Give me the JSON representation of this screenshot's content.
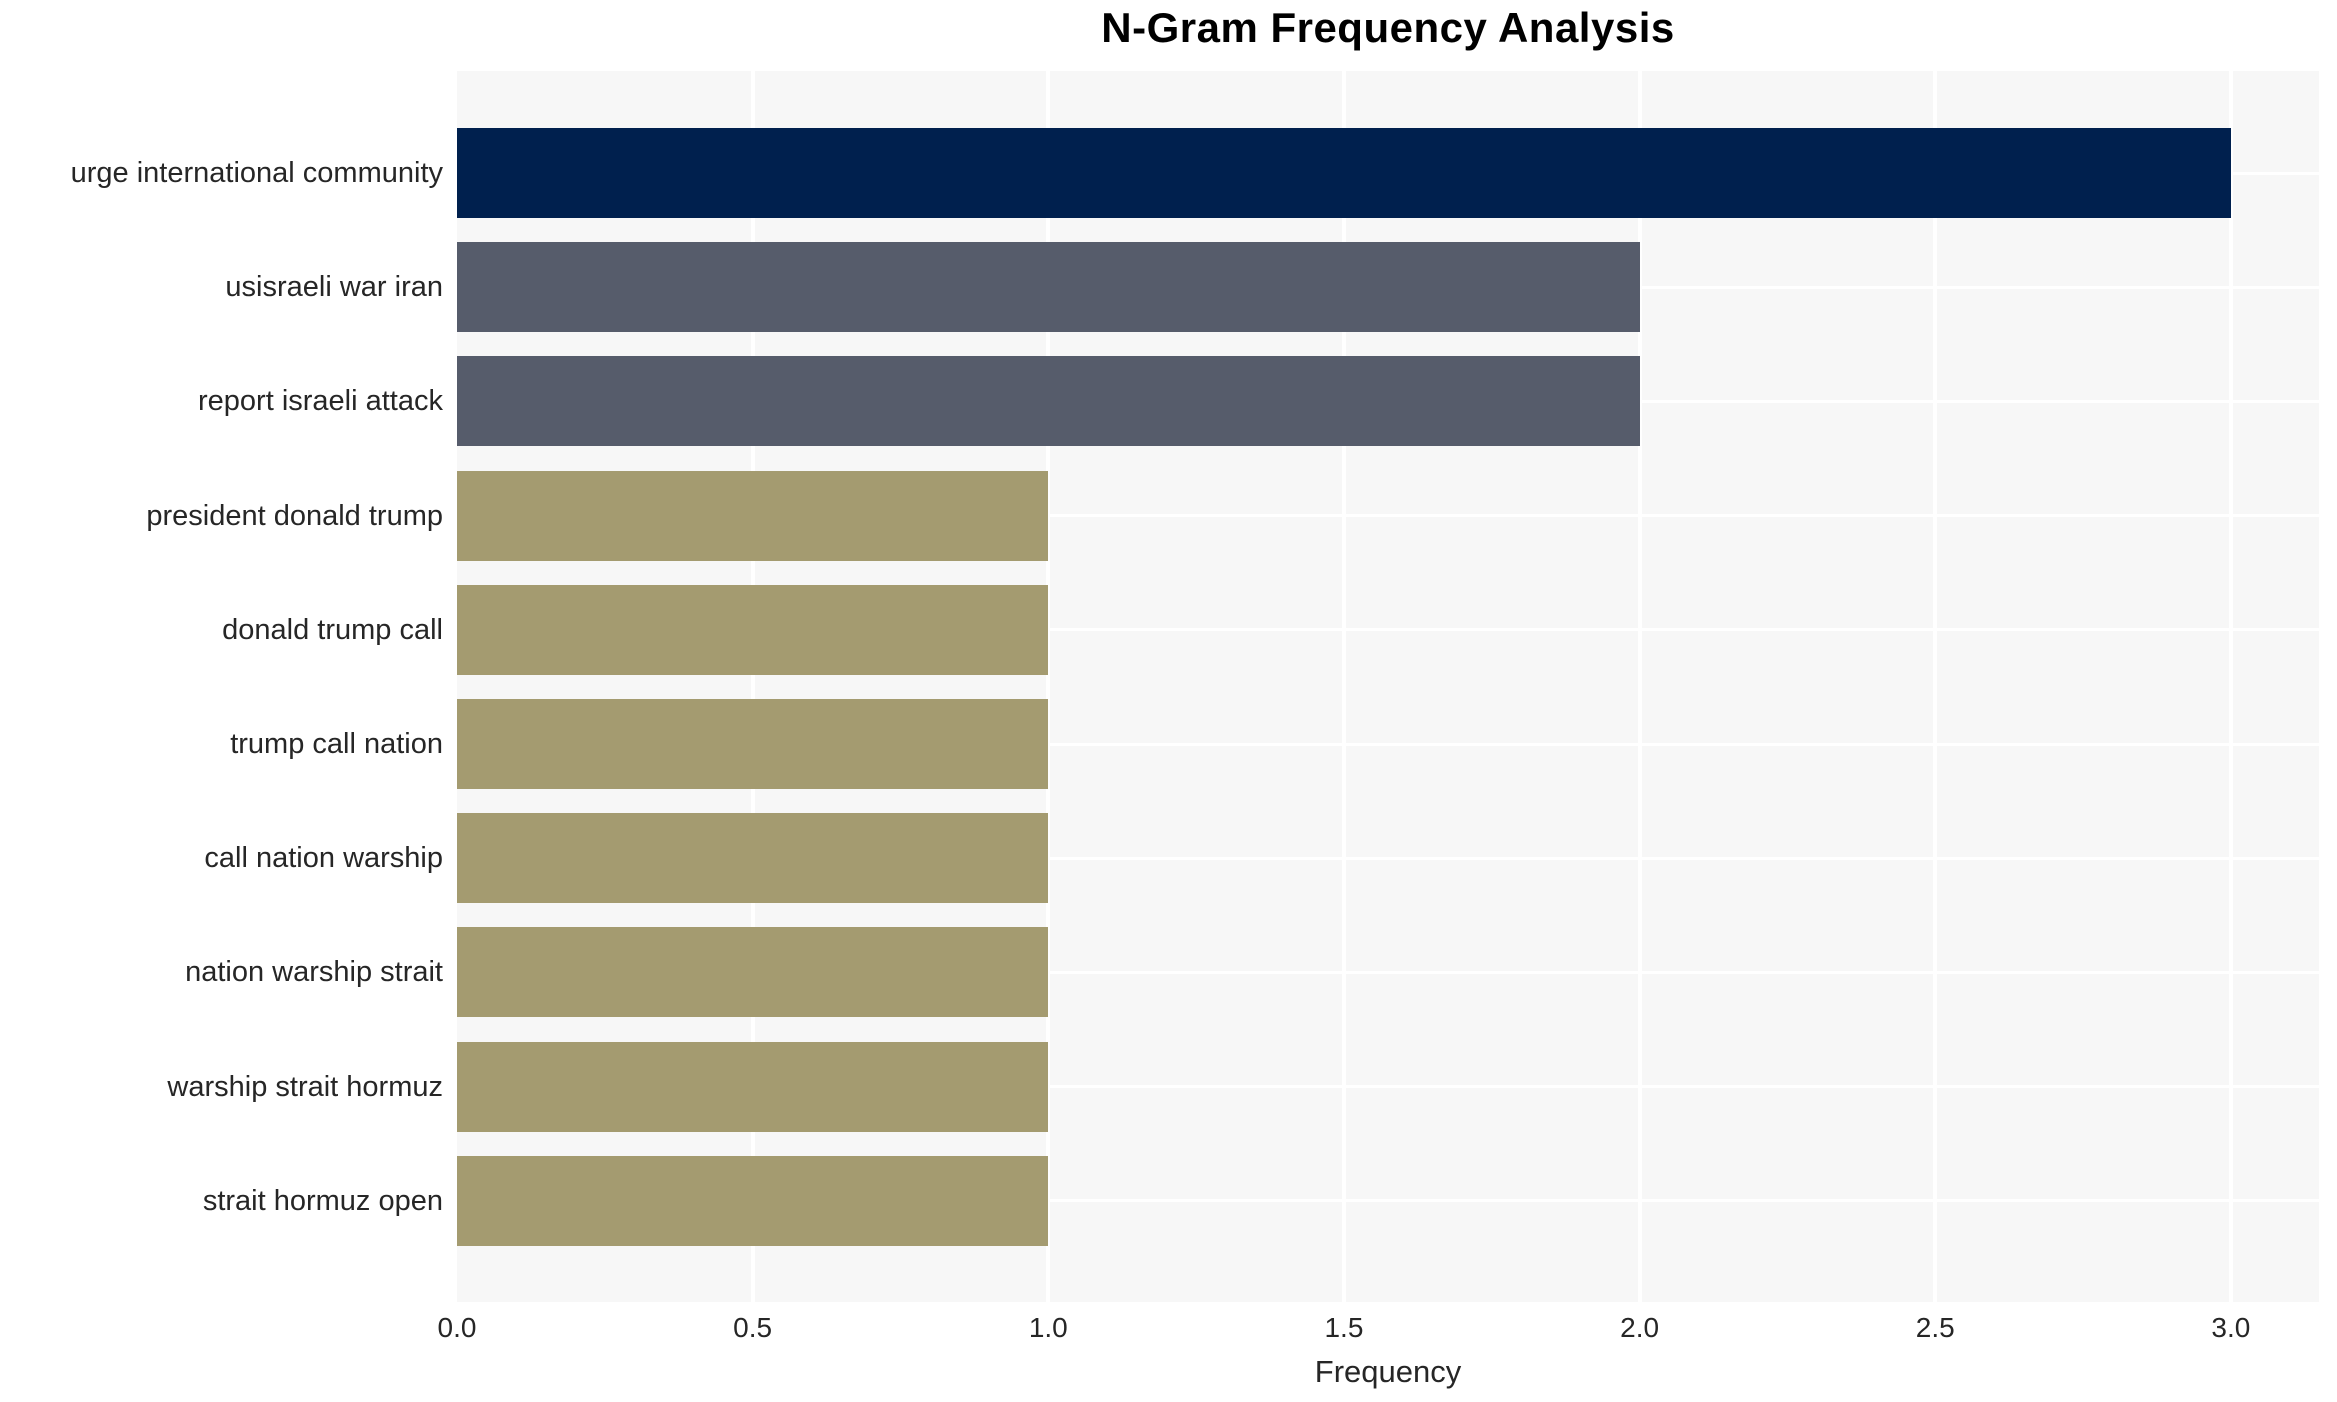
{
  "chart_data": {
    "type": "bar",
    "orientation": "horizontal",
    "title": "N-Gram Frequency Analysis",
    "xlabel": "Frequency",
    "ylabel": "",
    "categories": [
      "urge international community",
      "usisraeli war iran",
      "report israeli attack",
      "president donald trump",
      "donald trump call",
      "trump call nation",
      "call nation warship",
      "nation warship strait",
      "warship strait hormuz",
      "strait hormuz open"
    ],
    "values": [
      3,
      2,
      2,
      1,
      1,
      1,
      1,
      1,
      1,
      1
    ],
    "bar_colors": [
      "#00204e",
      "#565c6b",
      "#565c6b",
      "#a49b70",
      "#a49b70",
      "#a49b70",
      "#a49b70",
      "#a49b70",
      "#a49b70",
      "#a49b70"
    ],
    "xticks": [
      0.0,
      0.5,
      1.0,
      1.5,
      2.0,
      2.5,
      3.0
    ],
    "xtick_labels": [
      "0.0",
      "0.5",
      "1.0",
      "1.5",
      "2.0",
      "2.5",
      "3.0"
    ],
    "xlim": [
      0,
      3.15
    ],
    "grid": true,
    "legend": false
  },
  "colors": {
    "figure_bg": "#ffffff",
    "plot_bg": "#f7f7f7",
    "grid": "#ffffff",
    "title_text": "#000000",
    "label_text": "#262626"
  }
}
